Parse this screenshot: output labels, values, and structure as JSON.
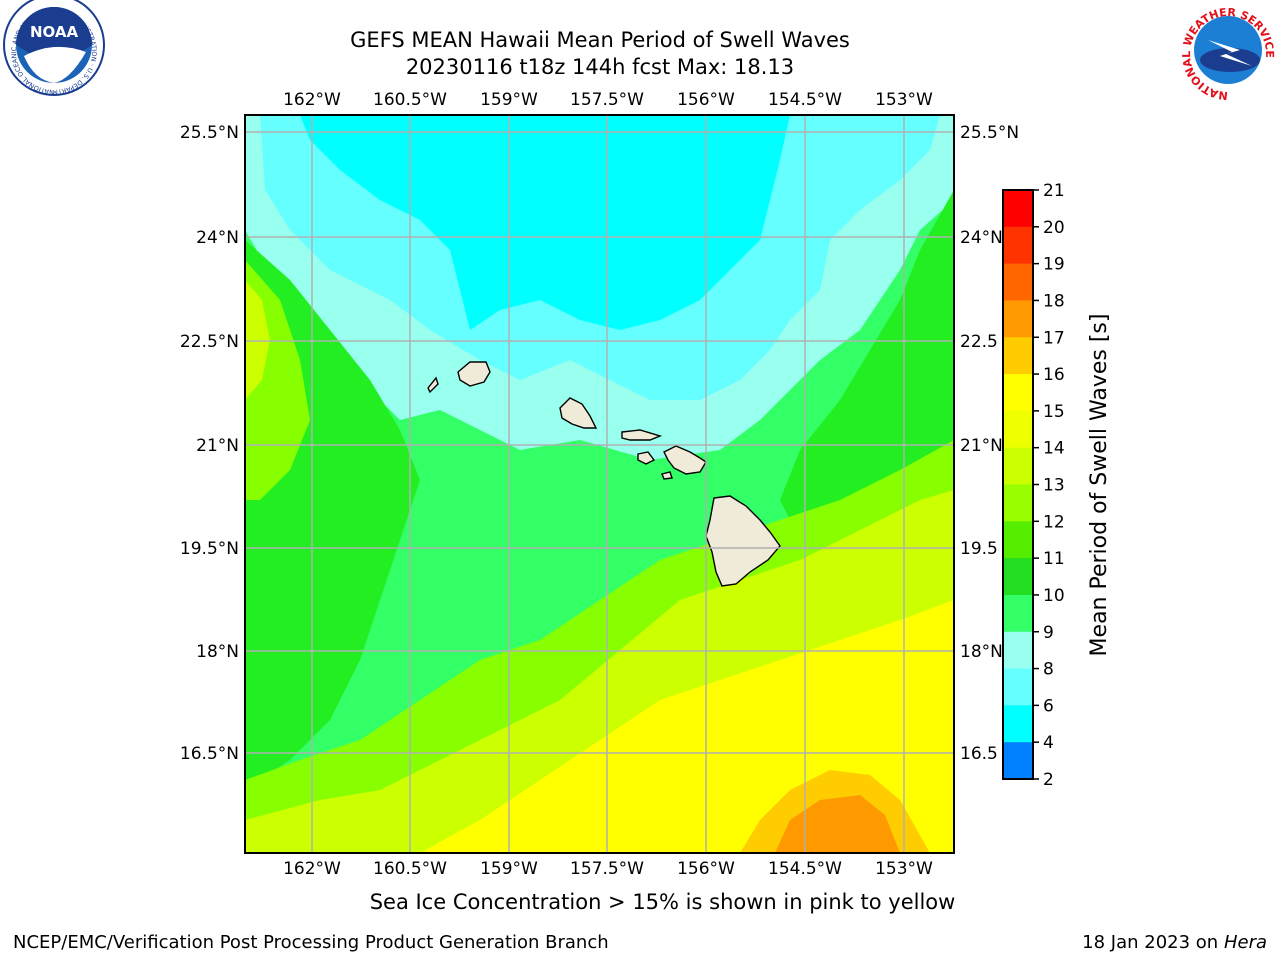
{
  "header": {
    "title_line1": "GEFS MEAN Hawaii Mean Period of Swell Waves",
    "title_line2": "20230116 t18z 144h fcst   Max: 18.13"
  },
  "logos": {
    "noaa_text": "NOAA",
    "noaa_ring_text": "NATIONAL OCEANIC AND ATMOSPHERIC ADMINISTRATION · U.S. DEPARTMENT OF COMMERCE",
    "nws_ring_text": "NATIONAL WEATHER SERVICE"
  },
  "map": {
    "lon_labels": [
      "162°W",
      "160.5°W",
      "159°W",
      "157.5°W",
      "156°W",
      "154.5°W",
      "153°W"
    ],
    "lat_labels": [
      "25.5°N",
      "24°N",
      "22.5°N",
      "21°N",
      "19.5°N",
      "18°N",
      "16.5°N"
    ],
    "lat_labels_right": [
      "25.5°N",
      "24°N",
      "22.5",
      "21°N",
      "19.5",
      "18°N",
      "16.5"
    ],
    "islands": [
      "Niihau",
      "Kauai",
      "Oahu",
      "Molokai",
      "Lanai",
      "Maui",
      "Kahoolawe",
      "Hawaii"
    ],
    "colors": {
      "ocean_cyan": "#00ffff",
      "light_cyan": "#66ffff",
      "aqua": "#99ffee",
      "green_light": "#33ff66",
      "green": "#22ee22",
      "green_yellow": "#88ff00",
      "yellow_green": "#ccff00",
      "yellow": "#ffff00",
      "orange": "#ff9900",
      "land": "#f0ebd8",
      "grid": "#b0b0b0"
    }
  },
  "colorbar": {
    "label": "Mean Period of Swell Waves [s]",
    "ticks": [
      "21",
      "20",
      "19",
      "18",
      "17",
      "16",
      "15",
      "14",
      "13",
      "12",
      "11",
      "10",
      "9",
      "8",
      "6",
      "4",
      "2"
    ],
    "colors": [
      "#ff0000",
      "#ff3300",
      "#ff6600",
      "#ff9900",
      "#ffcc00",
      "#ffff00",
      "#eeff00",
      "#ccff00",
      "#99ff00",
      "#55ee00",
      "#22dd22",
      "#33ff66",
      "#99ffee",
      "#66ffff",
      "#00ffff",
      "#0080ff",
      "#0000ff"
    ]
  },
  "bottom_note": "Sea Ice Concentration > 15% is shown in pink to yellow",
  "footer": {
    "left": "NCEP/EMC/Verification Post Processing Product Generation Branch",
    "right_date": "18 Jan 2023 on ",
    "right_machine": "Hera"
  }
}
